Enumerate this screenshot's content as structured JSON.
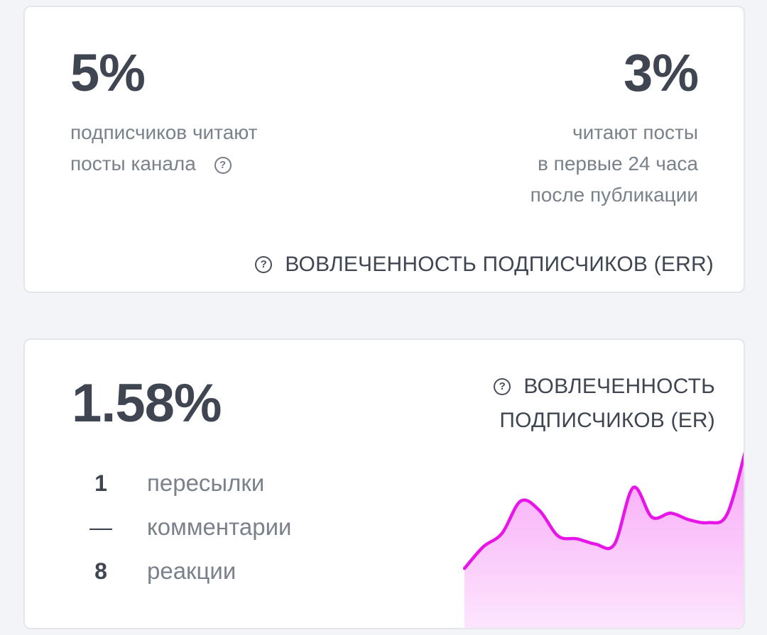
{
  "err_card": {
    "left_value": "5%",
    "left_desc": [
      "подписчиков читают",
      "посты канала"
    ],
    "right_value": "3%",
    "right_desc": [
      "читают посты",
      "в первые 24 часа",
      "после публикации"
    ],
    "caption": "ВОВЛЕЧЕННОСТЬ ПОДПИСЧИКОВ (ERR)"
  },
  "er_card": {
    "value": "1.58%",
    "caption_lines": [
      "ВОВЛЕЧЕННОСТЬ",
      "ПОДПИСЧИКОВ (ER)"
    ],
    "stats": [
      {
        "value": "1",
        "label": "пересылки"
      },
      {
        "value": "—",
        "label": "комментарии"
      },
      {
        "value": "8",
        "label": "реакции"
      }
    ]
  },
  "icons": {
    "help": "question-circle-icon"
  },
  "colors": {
    "sparkline_stroke": "#e815e8",
    "sparkline_fill_top": "#f7a6f7",
    "sparkline_fill_bottom": "#fde6fd",
    "text_dark": "#3f4651",
    "text_muted": "#7b818b"
  },
  "sparkline": {
    "values": [
      0.12,
      0.28,
      0.38,
      0.62,
      0.55,
      0.36,
      0.34,
      0.3,
      0.3,
      0.72,
      0.5,
      0.53,
      0.48,
      0.46,
      0.52,
      1.0
    ]
  }
}
